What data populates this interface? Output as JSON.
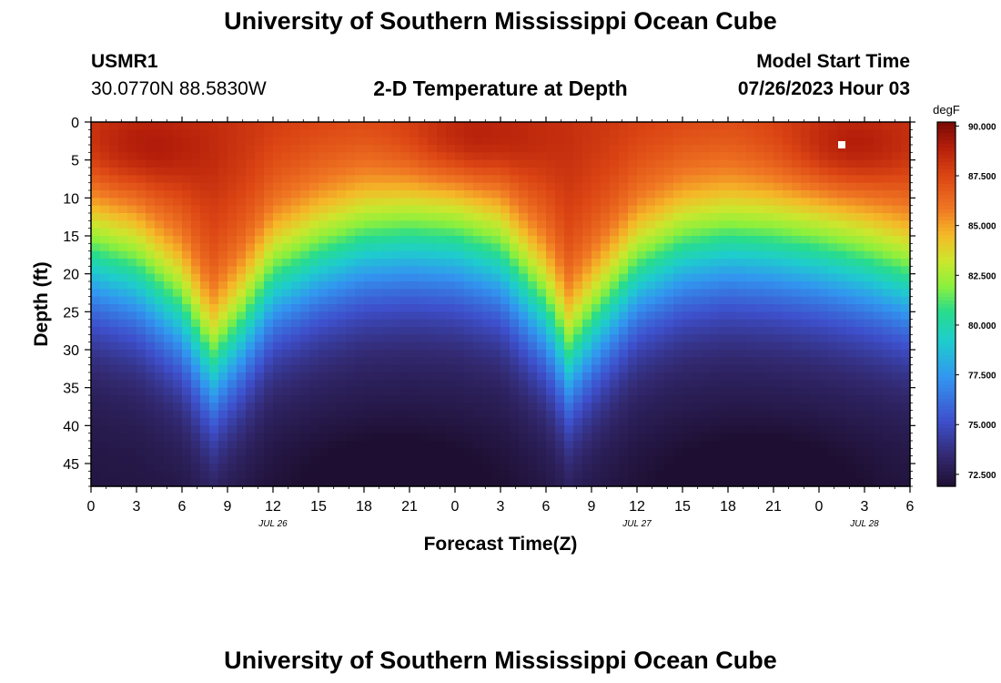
{
  "header": {
    "title": "University of Southern Mississippi Ocean Cube",
    "station": "USMR1",
    "coordinates": "30.0770N  88.5830W",
    "plot_title": "2-D Temperature at Depth",
    "model_label": "Model Start Time",
    "model_time": "07/26/2023 Hour 03"
  },
  "footer": {
    "title": "University of Southern Mississippi Ocean Cube"
  },
  "colors": {
    "background": "#ffffff",
    "text": "#000000",
    "marker": "#ffffff"
  },
  "chart_data": {
    "type": "heatmap",
    "title": "2-D Temperature at Depth",
    "xlabel": "Forecast Time(Z)",
    "ylabel": "Depth (ft)",
    "x_tick_labels": [
      "0",
      "3",
      "6",
      "9",
      "12",
      "15",
      "18",
      "21",
      "0",
      "3",
      "6",
      "9",
      "12",
      "15",
      "18",
      "21",
      "0",
      "3",
      "6"
    ],
    "date_labels": [
      {
        "label": "JUL 26",
        "forecast_hour": 12
      },
      {
        "label": "JUL 27",
        "forecast_hour": 36
      },
      {
        "label": "JUL 28",
        "forecast_hour": 51
      }
    ],
    "x_range_hours": [
      0,
      54
    ],
    "y_ticks": [
      0,
      5,
      10,
      15,
      20,
      25,
      30,
      35,
      40,
      45
    ],
    "y_range_ft": [
      0,
      48
    ],
    "y_inverted": true,
    "colorbar": {
      "unit": "degF",
      "ticks": [
        "72.500",
        "75.000",
        "77.500",
        "80.000",
        "82.500",
        "85.000",
        "87.500",
        "90.000"
      ],
      "range": [
        71.9,
        90.2
      ]
    },
    "thermocline_depth_ft": [
      {
        "hour": 0,
        "depth": 18
      },
      {
        "hour": 3,
        "depth": 20
      },
      {
        "hour": 6,
        "depth": 25
      },
      {
        "hour": 8,
        "depth": 32
      },
      {
        "hour": 10,
        "depth": 27
      },
      {
        "hour": 12,
        "depth": 21
      },
      {
        "hour": 15,
        "depth": 18
      },
      {
        "hour": 18,
        "depth": 16
      },
      {
        "hour": 21,
        "depth": 15.5
      },
      {
        "hour": 24,
        "depth": 16
      },
      {
        "hour": 27,
        "depth": 18
      },
      {
        "hour": 30,
        "depth": 25
      },
      {
        "hour": 31.5,
        "depth": 31
      },
      {
        "hour": 33,
        "depth": 27
      },
      {
        "hour": 36,
        "depth": 20
      },
      {
        "hour": 39,
        "depth": 17
      },
      {
        "hour": 42,
        "depth": 16
      },
      {
        "hour": 45,
        "depth": 16.5
      },
      {
        "hour": 48,
        "depth": 17.5
      },
      {
        "hour": 51,
        "depth": 19
      },
      {
        "hour": 54,
        "depth": 21
      }
    ],
    "marker": {
      "hour": 49.5,
      "depth_ft": 3
    }
  }
}
